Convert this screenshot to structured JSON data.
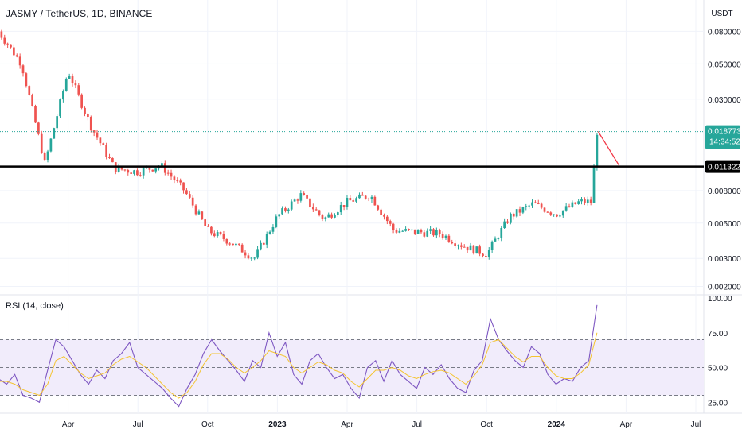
{
  "header": {
    "symbol_title": "JASMY / TetherUS, 1D, BINANCE",
    "currency": "USDT"
  },
  "rsi_panel": {
    "title": "RSI (14, close)"
  },
  "chart_data": [
    {
      "type": "candlestick",
      "title": "JASMY / TetherUS, 1D, BINANCE",
      "y_scale": "log",
      "ylim": [
        0.0019,
        0.1
      ],
      "y_ticks": [
        "0.080000",
        "0.050000",
        "0.030000",
        "0.008000",
        "0.005000",
        "0.003000",
        "0.002000"
      ],
      "x_ticks": [
        "Apr",
        "Jul",
        "Oct",
        "2023",
        "Apr",
        "Jul",
        "Oct",
        "2024",
        "Apr",
        "Jul"
      ],
      "last_price": {
        "label": "0.018773",
        "value": 0.018773,
        "countdown": "14:34:52"
      },
      "horizontal_line": {
        "label": "0.011322",
        "value": 0.011322
      },
      "drawn_line": {
        "from": {
          "x": "Feb 2024",
          "y": 0.0188
        },
        "to": {
          "x": "Mar 2024",
          "y": 0.0115
        },
        "color": "#f23645"
      },
      "key_points": [
        {
          "x": "Jan 2022",
          "close": 0.08
        },
        {
          "x": "Feb 2022",
          "close": 0.05
        },
        {
          "x": "Mar 2022",
          "close": 0.0118
        },
        {
          "x": "Apr 2022",
          "close": 0.045
        },
        {
          "x": "May 2022",
          "close": 0.02
        },
        {
          "x": "Jun 2022",
          "close": 0.011
        },
        {
          "x": "Jul 2022",
          "close": 0.0105
        },
        {
          "x": "Aug 2022",
          "close": 0.0115
        },
        {
          "x": "Sep 2022",
          "close": 0.008
        },
        {
          "x": "Oct 2022",
          "close": 0.0045
        },
        {
          "x": "Nov 2022",
          "close": 0.0038
        },
        {
          "x": "Dec 2022",
          "close": 0.003
        },
        {
          "x": "Jan 2023",
          "close": 0.0055
        },
        {
          "x": "Feb 2023",
          "close": 0.0075
        },
        {
          "x": "Mar 2023",
          "close": 0.0053
        },
        {
          "x": "Apr 2023",
          "close": 0.0068
        },
        {
          "x": "May 2023",
          "close": 0.0075
        },
        {
          "x": "Jun 2023",
          "close": 0.0045
        },
        {
          "x": "Jul 2023",
          "close": 0.0044
        },
        {
          "x": "Aug 2023",
          "close": 0.0043
        },
        {
          "x": "Sep 2023",
          "close": 0.0036
        },
        {
          "x": "Oct 2023",
          "close": 0.0032
        },
        {
          "x": "Nov 2023",
          "close": 0.0055
        },
        {
          "x": "Dec 2023",
          "close": 0.0066
        },
        {
          "x": "Jan 2024",
          "close": 0.0057
        },
        {
          "x": "Feb 2024",
          "close": 0.0068
        },
        {
          "x": "Feb 2024 (end)",
          "close": 0.0188
        }
      ],
      "colors": {
        "up": "#26a69a",
        "down": "#ef5350",
        "price_tag": "#26a69a",
        "level_line": "#000000"
      }
    },
    {
      "type": "line",
      "title": "RSI (14, close)",
      "ylim": [
        20,
        100
      ],
      "y_ticks": [
        "100.00",
        "75.00",
        "50.00",
        "25.00"
      ],
      "bands": {
        "upper": 70,
        "middle": 50,
        "lower": 30,
        "fill": "#f1ecfb"
      },
      "series": [
        {
          "values": [
            42,
            38,
            45,
            30,
            28,
            25,
            48,
            70,
            65,
            55,
            45,
            38,
            48,
            42,
            55,
            60,
            68,
            50,
            45,
            40,
            35,
            28,
            22,
            35,
            45,
            60,
            70,
            62,
            55,
            48,
            40,
            55,
            50,
            75,
            58,
            68,
            45,
            38,
            55,
            60,
            50,
            42,
            45,
            35,
            28,
            50,
            55,
            40,
            55,
            45,
            40,
            35,
            50,
            45,
            52,
            42,
            35,
            32,
            48,
            55,
            85,
            70,
            62,
            55,
            50,
            65,
            60,
            45,
            38,
            42,
            40,
            50,
            55,
            95
          ],
          "color": "#7e57c2"
        },
        {
          "values": [
            40,
            40,
            38,
            34,
            32,
            30,
            38,
            55,
            58,
            52,
            46,
            42,
            44,
            46,
            52,
            56,
            58,
            54,
            50,
            44,
            38,
            32,
            28,
            32,
            40,
            52,
            60,
            60,
            56,
            50,
            46,
            50,
            55,
            62,
            60,
            58,
            50,
            46,
            50,
            54,
            52,
            48,
            46,
            40,
            36,
            42,
            48,
            48,
            50,
            48,
            44,
            42,
            45,
            47,
            48,
            46,
            42,
            38,
            44,
            52,
            68,
            70,
            64,
            58,
            54,
            58,
            58,
            50,
            44,
            42,
            42,
            46,
            52,
            75
          ],
          "color": "#f4c430"
        }
      ]
    }
  ]
}
